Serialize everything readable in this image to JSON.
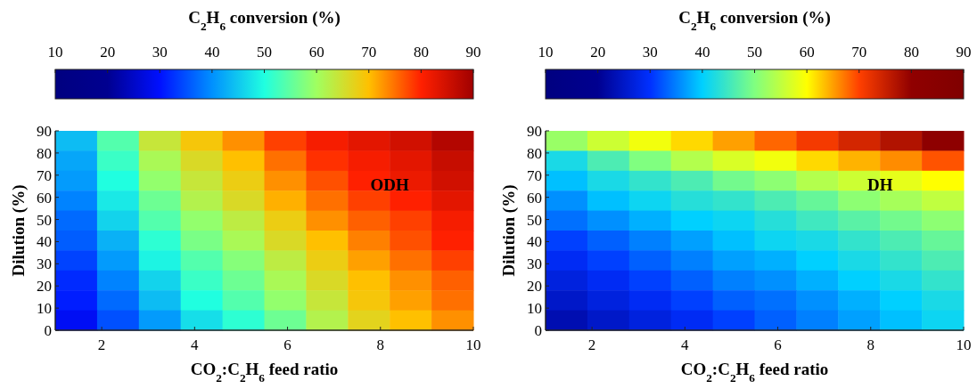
{
  "chart_data": [
    {
      "type": "heatmap",
      "clabel": "C$_{2}$H$_{6}$ conversion (%)",
      "xlabel": "CO$_{2}$:C$_{2}$H$_{6}$ feed ratio",
      "ylabel": "Dilution (%)",
      "annotations": [
        "ODH"
      ],
      "xlim": [
        1,
        10
      ],
      "xticks": [
        2,
        4,
        6,
        8,
        10
      ],
      "ylim": [
        0,
        90
      ],
      "yticks": [
        0,
        10,
        20,
        30,
        40,
        50,
        60,
        70,
        80,
        90
      ],
      "clim": [
        10,
        90
      ],
      "cticks": [
        10,
        20,
        30,
        40,
        50,
        60,
        70,
        80,
        90
      ],
      "colors": [
        "#000080",
        "#000090",
        "#0010ff",
        "#0090ff",
        "#20ffe0",
        "#a0ff60",
        "#ffc000",
        "#ff2000",
        "#a00000"
      ],
      "cells": [
        [
          44,
          54,
          64,
          69,
          73,
          78,
          81,
          83,
          85,
          88
        ],
        [
          42,
          52,
          61,
          66,
          70,
          75,
          79,
          81,
          83,
          86
        ],
        [
          41,
          50,
          59,
          64,
          68,
          73,
          77,
          80,
          82,
          85
        ],
        [
          39,
          48,
          56,
          62,
          66,
          71,
          75,
          78,
          80,
          83
        ],
        [
          37,
          46,
          54,
          59,
          63,
          68,
          73,
          76,
          78,
          81
        ],
        [
          36,
          43,
          51,
          57,
          61,
          66,
          70,
          74,
          77,
          80
        ],
        [
          34,
          41,
          49,
          54,
          58,
          63,
          68,
          72,
          75,
          78
        ],
        [
          32,
          39,
          46,
          52,
          56,
          61,
          66,
          70,
          73,
          76
        ],
        [
          31,
          37,
          44,
          50,
          54,
          59,
          64,
          69,
          72,
          75
        ],
        [
          29,
          35,
          41,
          47,
          51,
          56,
          62,
          67,
          70,
          73
        ]
      ]
    },
    {
      "type": "heatmap",
      "clabel": "C$_{2}$H$_{6}$ conversion (%)",
      "xlabel": "CO$_{2}$:C$_{2}$H$_{6}$ feed ratio",
      "ylabel": "Dilution (%)",
      "annotations": [
        "DH"
      ],
      "xlim": [
        1,
        10
      ],
      "xticks": [
        2,
        4,
        6,
        8,
        10
      ],
      "ylim": [
        0,
        90
      ],
      "yticks": [
        0,
        10,
        20,
        30,
        40,
        50,
        60,
        70,
        80,
        90
      ],
      "clim": [
        10,
        90
      ],
      "cticks": [
        10,
        20,
        30,
        40,
        50,
        60,
        70,
        80,
        90
      ],
      "colors": [
        "#000080",
        "#000090",
        "#0030ff",
        "#00d0ff",
        "#80ff80",
        "#ffff00",
        "#ff4000",
        "#900000",
        "#800000"
      ],
      "cells": [
        [
          52,
          56,
          59,
          62,
          65,
          68,
          71,
          74,
          77,
          81
        ],
        [
          42,
          46,
          50,
          54,
          57,
          59,
          62,
          64,
          66,
          69
        ],
        [
          39,
          42,
          44,
          46,
          49,
          51,
          54,
          56,
          58,
          60
        ],
        [
          36,
          39,
          41,
          43,
          44,
          46,
          48,
          51,
          53,
          55
        ],
        [
          34,
          36,
          38,
          40,
          41,
          43,
          45,
          47,
          49,
          51
        ],
        [
          31,
          33,
          35,
          37,
          39,
          41,
          42,
          44,
          46,
          48
        ],
        [
          29,
          31,
          33,
          35,
          37,
          38,
          40,
          42,
          44,
          46
        ],
        [
          27,
          29,
          31,
          33,
          35,
          36,
          38,
          40,
          42,
          44
        ],
        [
          25,
          27,
          29,
          31,
          33,
          34,
          36,
          38,
          40,
          42
        ],
        [
          23,
          25,
          27,
          29,
          31,
          33,
          35,
          37,
          39,
          41
        ]
      ]
    }
  ]
}
